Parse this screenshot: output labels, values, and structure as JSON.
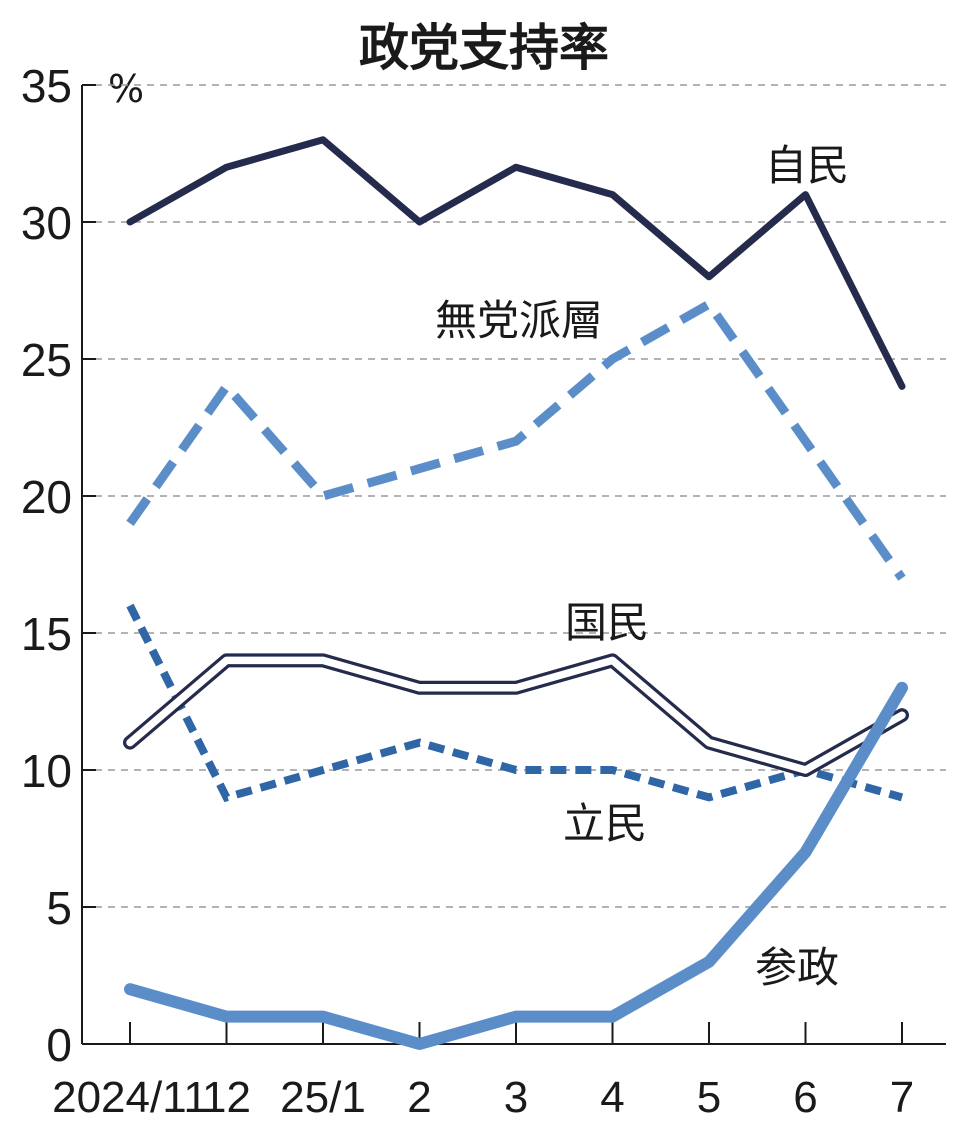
{
  "chart_data": {
    "type": "line",
    "title": "政党支持率",
    "unit": "%",
    "categories": [
      "2024/11",
      "12",
      "25/1",
      "2",
      "3",
      "4",
      "5",
      "6",
      "7"
    ],
    "ylim": [
      0,
      35
    ],
    "yticks": [
      "0",
      "5",
      "10",
      "15",
      "20",
      "25",
      "30",
      "35"
    ],
    "grid": true,
    "series": [
      {
        "name": "自民",
        "values": [
          30,
          32,
          33,
          30,
          32,
          31,
          28,
          31,
          24
        ],
        "color": "#252b4d",
        "style": "solid"
      },
      {
        "name": "無党派層",
        "values": [
          19,
          24,
          20,
          21,
          22,
          25,
          27,
          22,
          17
        ],
        "color": "#5b8ec9",
        "style": "dashed"
      },
      {
        "name": "国民",
        "values": [
          11,
          14,
          14,
          13,
          13,
          14,
          11,
          10,
          12
        ],
        "color": "#252b4d",
        "style": "double"
      },
      {
        "name": "立民",
        "values": [
          16,
          9,
          10,
          11,
          10,
          10,
          9,
          10,
          9
        ],
        "color": "#2f66a6",
        "style": "dotted"
      },
      {
        "name": "参政",
        "values": [
          2,
          1,
          1,
          0,
          1,
          1,
          3,
          7,
          13
        ],
        "color": "#5b8ec9",
        "style": "thick"
      }
    ]
  }
}
